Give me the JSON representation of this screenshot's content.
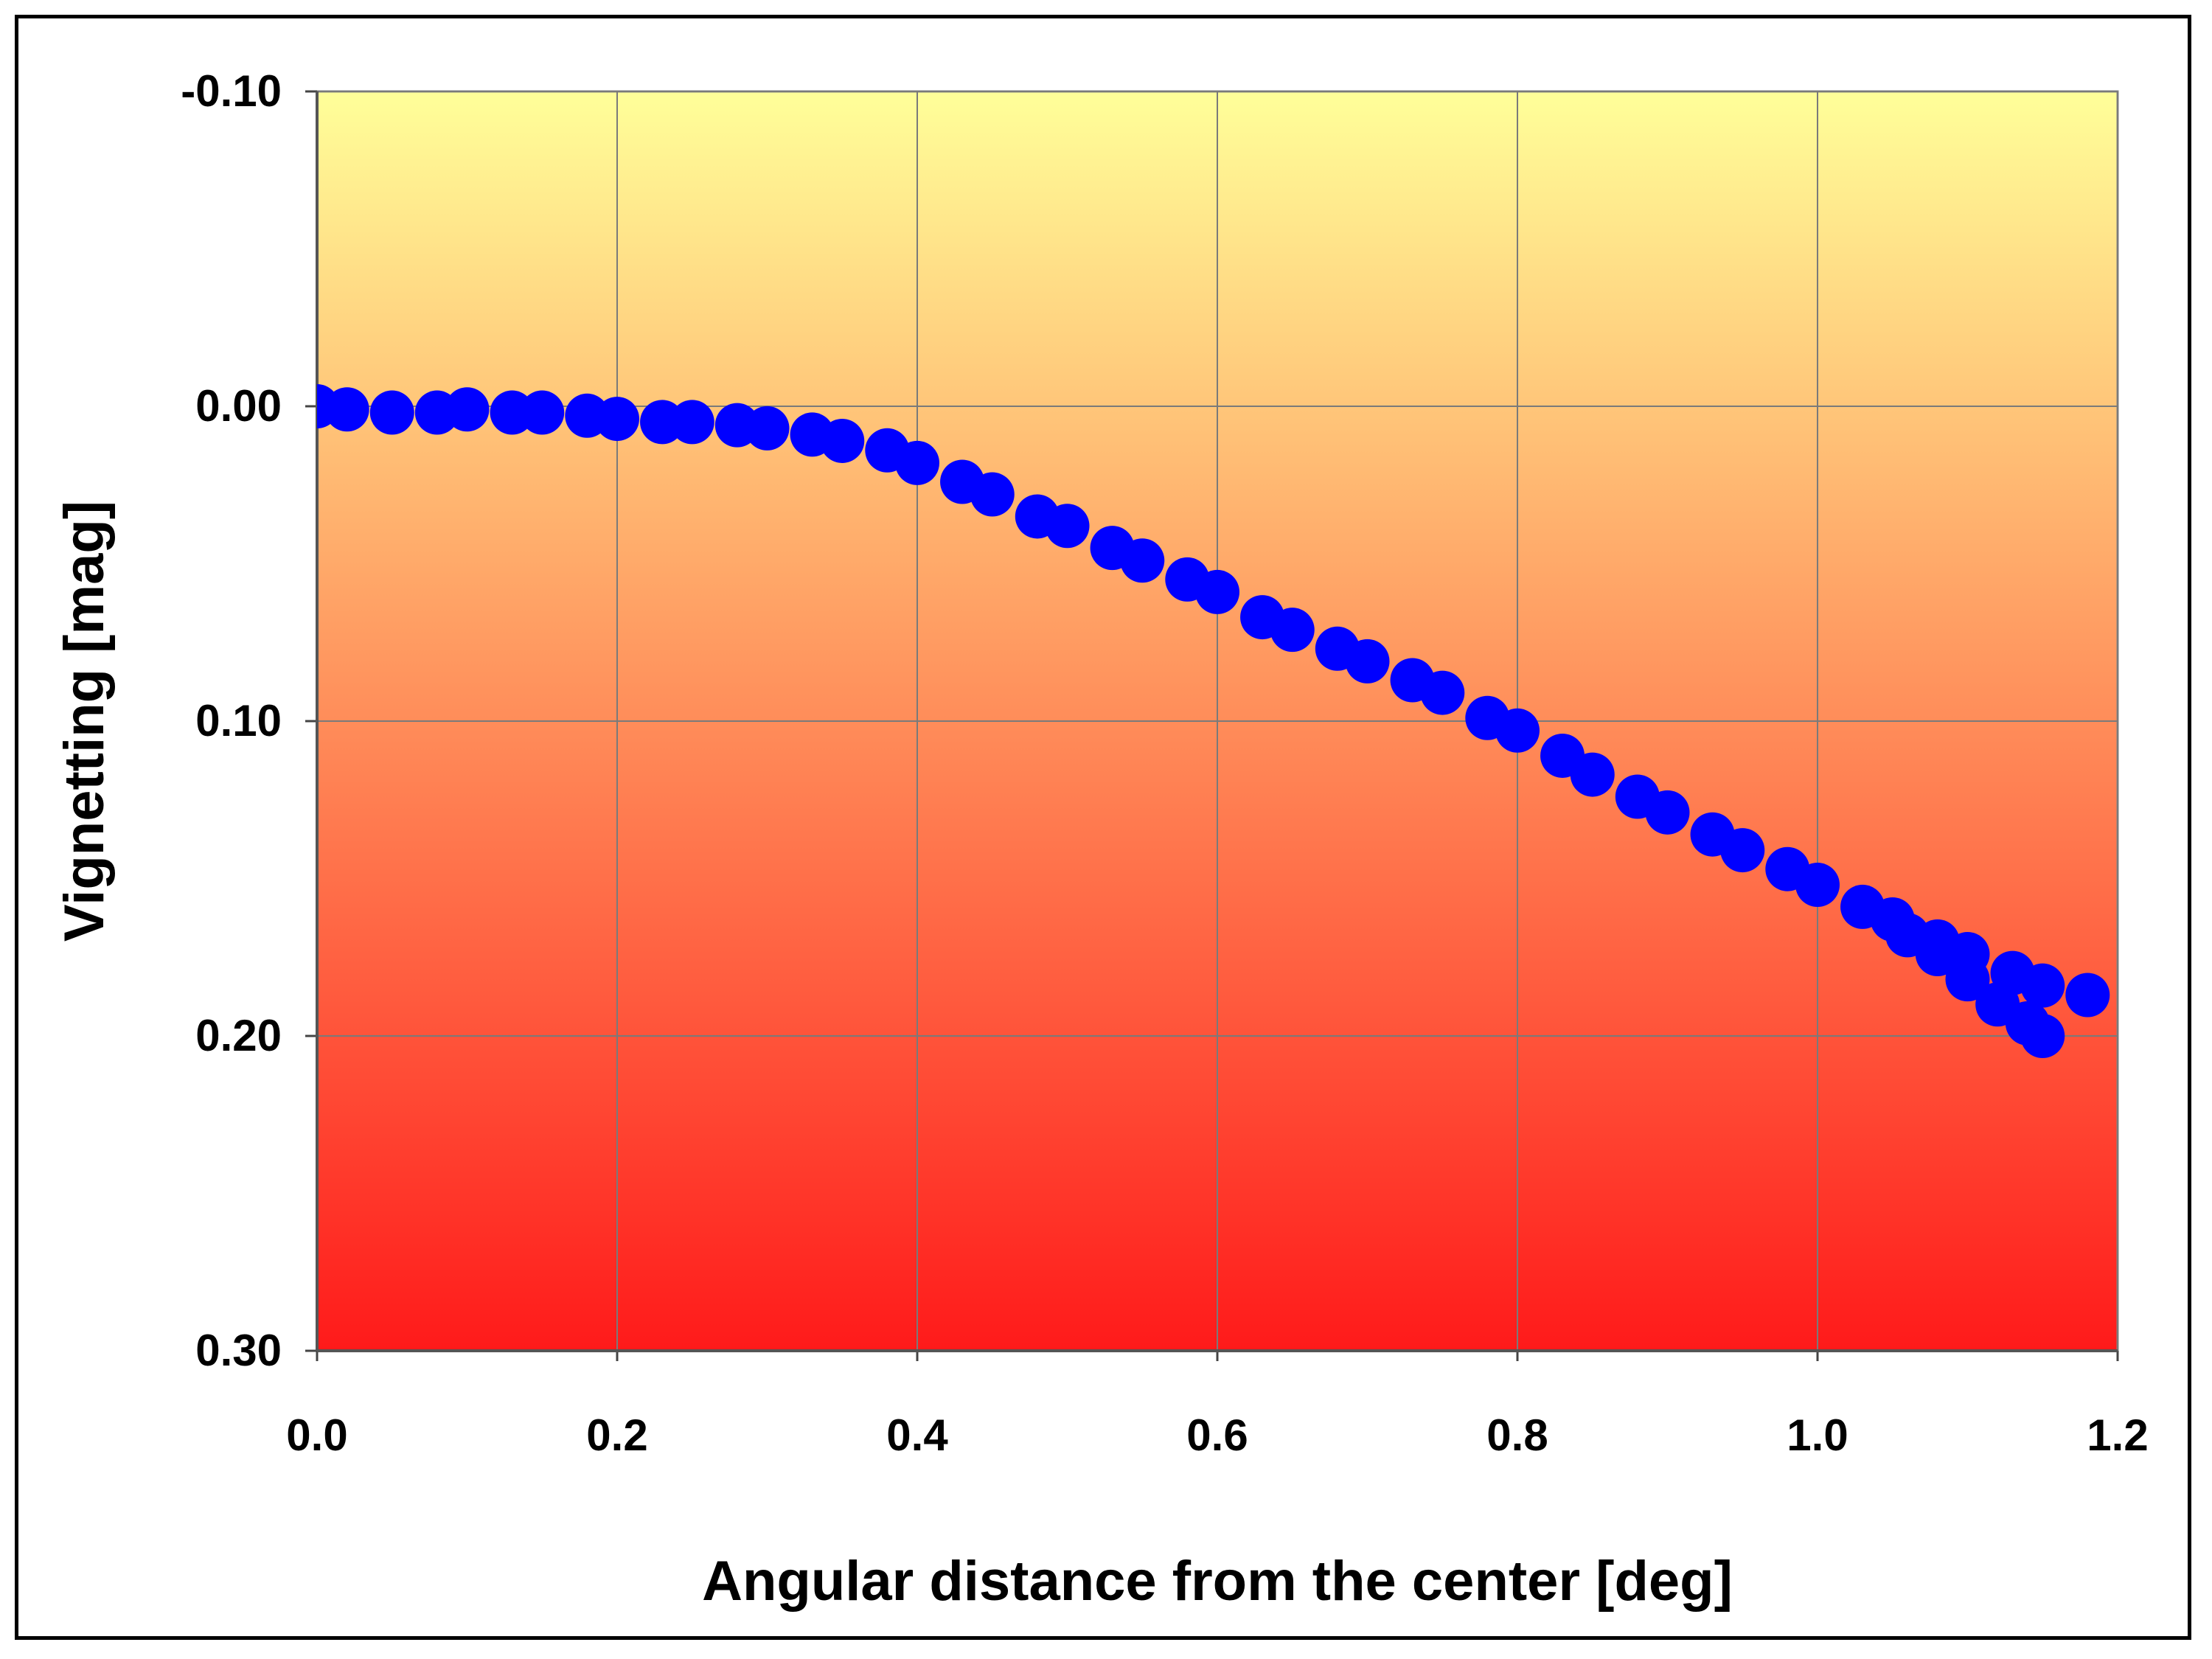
{
  "chart_data": {
    "type": "scatter",
    "xlabel": "Angular distance from the center [deg]",
    "ylabel": "Vignetting [mag]",
    "xlim": [
      0,
      1.2
    ],
    "ylim": [
      -0.1,
      0.3
    ],
    "y_inverted": true,
    "x_ticks": [
      "0.0",
      "0.2",
      "0.4",
      "0.6",
      "0.8",
      "1.0",
      "1.2"
    ],
    "y_ticks": [
      "-0.10",
      "0.00",
      "0.10",
      "0.20",
      "0.30"
    ],
    "grid": true,
    "legend": "none",
    "background_gradient": {
      "top": "#ffff99",
      "bottom": "#ff1a1a"
    },
    "marker_color": "#0000ff",
    "series": [
      {
        "points": [
          [
            0.0,
            0.0
          ],
          [
            0.02,
            0.001
          ],
          [
            0.05,
            0.002
          ],
          [
            0.08,
            0.002
          ],
          [
            0.1,
            0.001
          ],
          [
            0.13,
            0.002
          ],
          [
            0.15,
            0.002
          ],
          [
            0.18,
            0.003
          ],
          [
            0.2,
            0.004
          ],
          [
            0.23,
            0.005
          ],
          [
            0.25,
            0.005
          ],
          [
            0.28,
            0.006
          ],
          [
            0.3,
            0.007
          ],
          [
            0.33,
            0.009
          ],
          [
            0.35,
            0.011
          ],
          [
            0.38,
            0.014
          ],
          [
            0.4,
            0.018
          ],
          [
            0.43,
            0.024
          ],
          [
            0.45,
            0.028
          ],
          [
            0.48,
            0.035
          ],
          [
            0.5,
            0.038
          ],
          [
            0.53,
            0.045
          ],
          [
            0.55,
            0.049
          ],
          [
            0.58,
            0.055
          ],
          [
            0.6,
            0.059
          ],
          [
            0.63,
            0.067
          ],
          [
            0.65,
            0.071
          ],
          [
            0.68,
            0.077
          ],
          [
            0.7,
            0.081
          ],
          [
            0.73,
            0.087
          ],
          [
            0.75,
            0.091
          ],
          [
            0.78,
            0.099
          ],
          [
            0.8,
            0.103
          ],
          [
            0.83,
            0.111
          ],
          [
            0.85,
            0.117
          ],
          [
            0.88,
            0.124
          ],
          [
            0.9,
            0.129
          ],
          [
            0.93,
            0.136
          ],
          [
            0.95,
            0.141
          ],
          [
            0.98,
            0.147
          ],
          [
            1.0,
            0.152
          ],
          [
            1.03,
            0.159
          ],
          [
            1.05,
            0.163
          ],
          [
            1.08,
            0.17
          ],
          [
            1.1,
            0.174
          ],
          [
            1.13,
            0.18
          ],
          [
            1.15,
            0.184
          ],
          [
            1.18,
            0.187
          ]
        ]
      },
      {
        "points": [
          [
            1.06,
            0.168
          ],
          [
            1.08,
            0.174
          ],
          [
            1.1,
            0.182
          ],
          [
            1.12,
            0.19
          ],
          [
            1.14,
            0.196
          ],
          [
            1.15,
            0.2
          ]
        ]
      }
    ]
  }
}
